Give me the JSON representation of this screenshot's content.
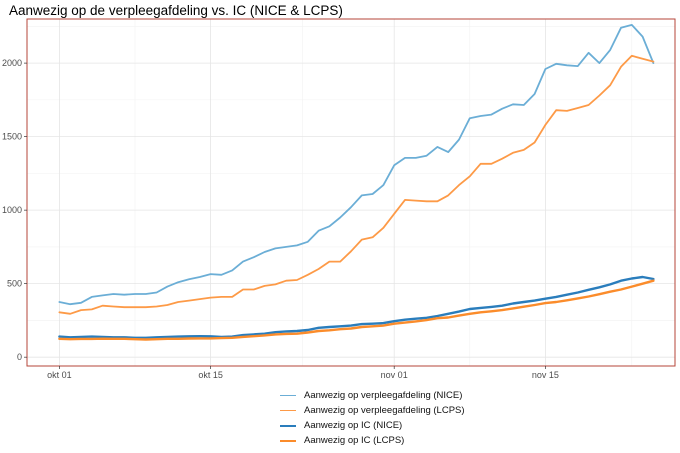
{
  "title": "Aanwezig op de verpleegafdeling vs. IC (NICE & LCPS)",
  "colors": {
    "nice_ward": "#6BAED6",
    "lcps_ward": "#FD9A47",
    "nice_ic": "#2A7DBC",
    "lcps_ic": "#FB8C2B",
    "panel_border": "#B5463A",
    "grid": "#E5E5E5"
  },
  "chart_data": {
    "type": "line",
    "title": "Aanwezig op de verpleegafdeling vs. IC (NICE & LCPS)",
    "xlabel": "",
    "ylabel": "",
    "x_start": "2020-10-01",
    "x_end": "2020-11-25",
    "xlim": [
      "2020-09-28",
      "2020-11-27"
    ],
    "ylim": [
      -60,
      2300
    ],
    "x_ticks": [
      {
        "date": "2020-10-01",
        "label": "okt 01"
      },
      {
        "date": "2020-10-15",
        "label": "okt 15"
      },
      {
        "date": "2020-11-01",
        "label": "nov 01"
      },
      {
        "date": "2020-11-15",
        "label": "nov 15"
      }
    ],
    "y_ticks": [
      0,
      500,
      1000,
      1500,
      2000
    ],
    "grid": true,
    "legend_position": "bottom",
    "series": [
      {
        "name": "Aanwezig op verpleegafdeling (NICE)",
        "color": "#6BAED6",
        "width": 1.8,
        "values": [
          375,
          360,
          370,
          410,
          420,
          430,
          425,
          430,
          430,
          440,
          480,
          510,
          530,
          545,
          565,
          560,
          590,
          650,
          680,
          715,
          740,
          750,
          760,
          785,
          860,
          890,
          950,
          1020,
          1100,
          1110,
          1170,
          1305,
          1355,
          1355,
          1370,
          1430,
          1395,
          1480,
          1625,
          1640,
          1650,
          1690,
          1720,
          1715,
          1790,
          1960,
          1995,
          1985,
          1980,
          2070,
          2000,
          2090,
          2240,
          2260,
          2180,
          2000
        ]
      },
      {
        "name": "Aanwezig op verpleegafdeling (LCPS)",
        "color": "#FD9A47",
        "width": 1.8,
        "values": [
          305,
          295,
          320,
          325,
          350,
          345,
          340,
          340,
          340,
          345,
          355,
          375,
          385,
          395,
          405,
          410,
          410,
          460,
          460,
          485,
          495,
          520,
          525,
          560,
          600,
          650,
          650,
          720,
          800,
          815,
          880,
          975,
          1070,
          1065,
          1060,
          1060,
          1100,
          1170,
          1230,
          1315,
          1315,
          1350,
          1390,
          1410,
          1460,
          1580,
          1680,
          1675,
          1695,
          1715,
          1780,
          1850,
          1975,
          2050,
          2030,
          2010
        ]
      },
      {
        "name": "Aanwezig op IC (NICE)",
        "color": "#2A7DBC",
        "width": 2.4,
        "values": [
          140,
          135,
          138,
          140,
          138,
          135,
          135,
          132,
          132,
          135,
          138,
          140,
          142,
          143,
          142,
          138,
          140,
          150,
          155,
          160,
          170,
          175,
          178,
          185,
          200,
          205,
          210,
          215,
          225,
          228,
          232,
          245,
          255,
          262,
          268,
          280,
          295,
          310,
          328,
          335,
          342,
          350,
          365,
          375,
          385,
          398,
          410,
          425,
          440,
          458,
          475,
          495,
          520,
          535,
          545,
          532
        ]
      },
      {
        "name": "Aanwezig op IC (LCPS)",
        "color": "#FB8C2B",
        "width": 2.4,
        "values": [
          125,
          122,
          124,
          124,
          126,
          125,
          125,
          122,
          120,
          122,
          125,
          125,
          127,
          128,
          128,
          130,
          132,
          138,
          143,
          148,
          155,
          158,
          160,
          168,
          178,
          183,
          190,
          195,
          205,
          210,
          215,
          228,
          235,
          243,
          252,
          265,
          270,
          283,
          295,
          305,
          312,
          320,
          332,
          343,
          355,
          368,
          375,
          387,
          400,
          413,
          428,
          445,
          460,
          480,
          500,
          520
        ]
      }
    ]
  }
}
